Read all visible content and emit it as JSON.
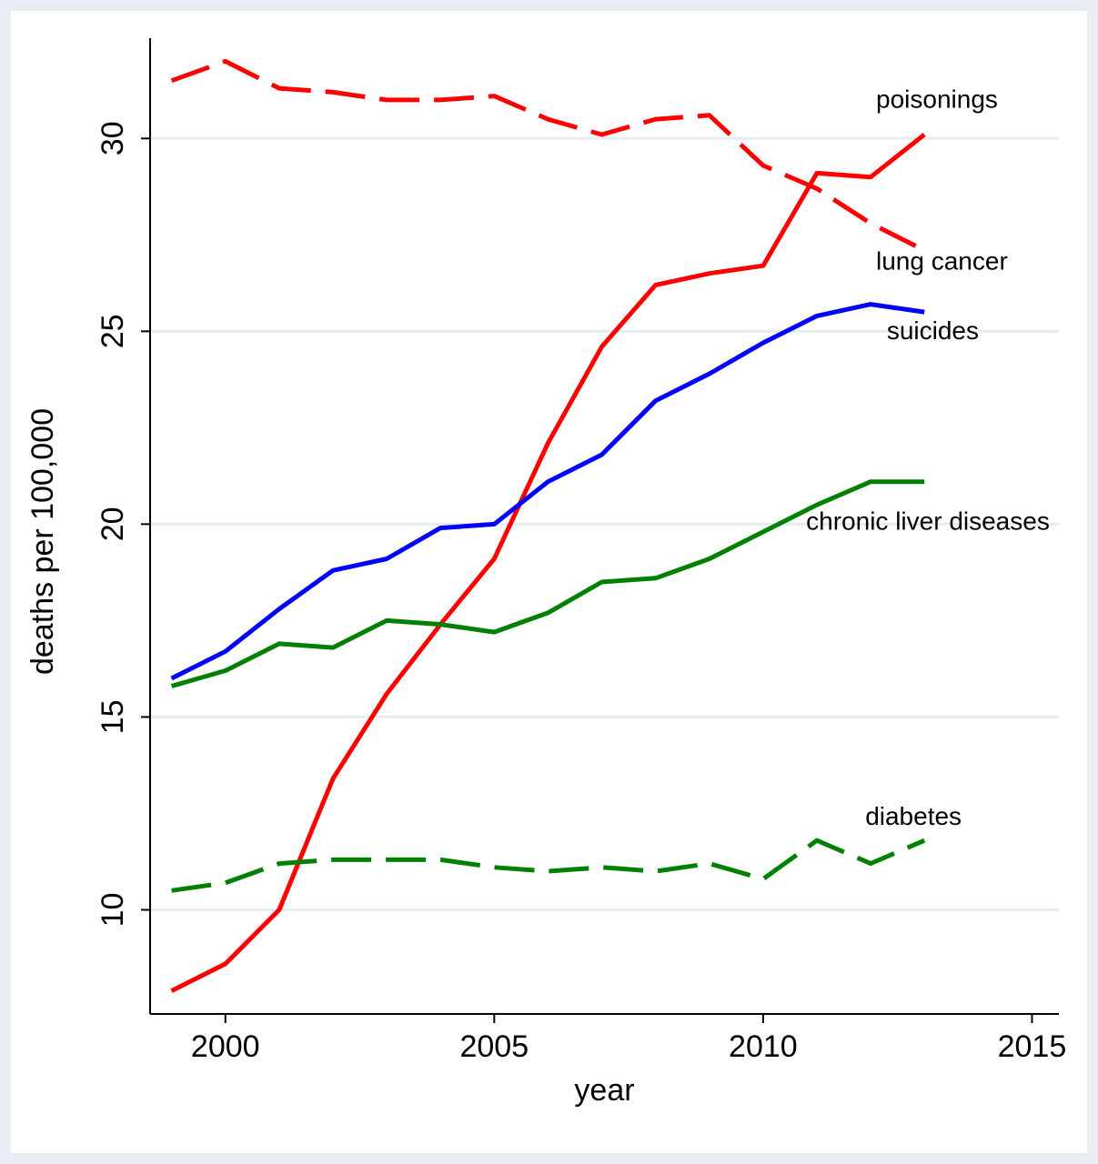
{
  "chart_data": {
    "type": "line",
    "xlabel": "year",
    "ylabel": "deaths per 100,000",
    "xlim": [
      1998.6,
      2015.5
    ],
    "ylim": [
      7.3,
      32.6
    ],
    "x_ticks": [
      2000,
      2005,
      2010,
      2015
    ],
    "y_ticks": [
      10,
      15,
      20,
      25,
      30
    ],
    "grid": "horizontal",
    "x": [
      1999,
      2000,
      2001,
      2002,
      2003,
      2004,
      2005,
      2006,
      2007,
      2008,
      2009,
      2010,
      2011,
      2012,
      2013
    ],
    "series": [
      {
        "name": "poisonings",
        "color": "#ff0000",
        "dash": "solid",
        "values": [
          7.9,
          8.6,
          10.0,
          13.4,
          15.6,
          17.4,
          19.1,
          22.1,
          24.6,
          26.2,
          26.5,
          26.7,
          29.1,
          29.0,
          30.1
        ]
      },
      {
        "name": "lung cancer",
        "color": "#ff0000",
        "dash": "dashed",
        "values": [
          31.5,
          32.0,
          31.3,
          31.2,
          31.0,
          31.0,
          31.1,
          30.5,
          30.1,
          30.5,
          30.6,
          29.3,
          28.7,
          27.8,
          27.1
        ]
      },
      {
        "name": "suicides",
        "color": "#0000ff",
        "dash": "solid",
        "values": [
          16.0,
          16.7,
          17.8,
          18.8,
          19.1,
          19.9,
          20.0,
          21.1,
          21.8,
          23.2,
          23.9,
          24.7,
          25.4,
          25.7,
          25.5
        ]
      },
      {
        "name": "chronic liver diseases",
        "color": "#008000",
        "dash": "solid",
        "values": [
          15.8,
          16.2,
          16.9,
          16.8,
          17.5,
          17.4,
          17.2,
          17.7,
          18.5,
          18.6,
          19.1,
          19.8,
          20.5,
          21.1,
          21.1
        ]
      },
      {
        "name": "diabetes",
        "color": "#008000",
        "dash": "dashed",
        "values": [
          10.5,
          10.7,
          11.2,
          11.3,
          11.3,
          11.3,
          11.1,
          11.0,
          11.1,
          11.0,
          11.2,
          10.8,
          11.8,
          11.2,
          11.8
        ]
      }
    ],
    "series_labels": [
      {
        "text": "poisonings",
        "x": 2012.1,
        "y": 30.8
      },
      {
        "text": "lung cancer",
        "x": 2012.1,
        "y": 26.6
      },
      {
        "text": "suicides",
        "x": 2012.3,
        "y": 24.8
      },
      {
        "text": "chronic liver diseases",
        "x": 2010.8,
        "y": 19.85
      },
      {
        "text": "diabetes",
        "x": 2011.9,
        "y": 12.2
      }
    ]
  }
}
